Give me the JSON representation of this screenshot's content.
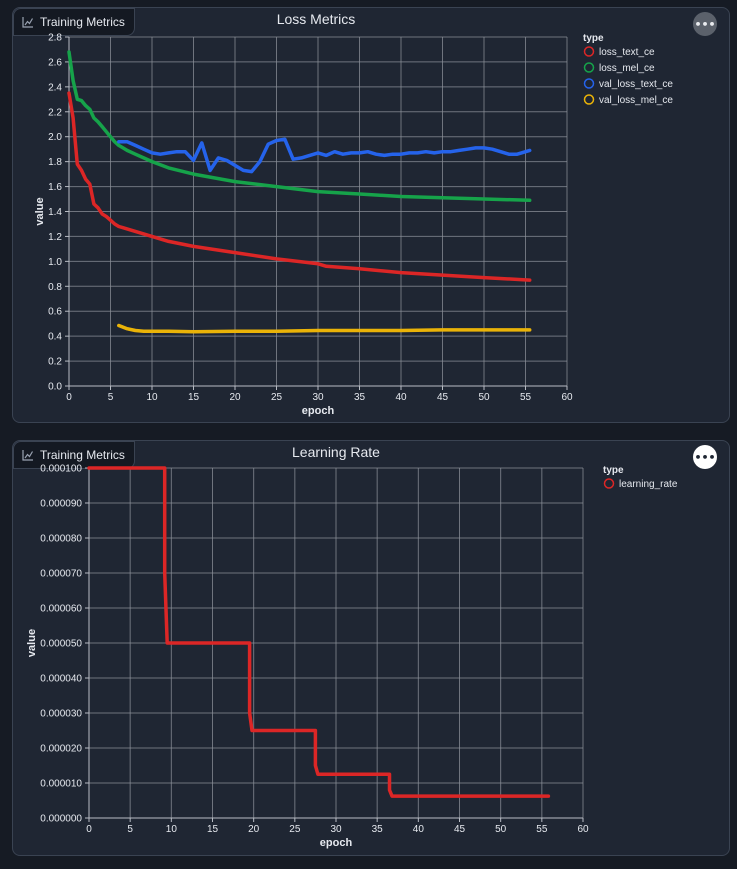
{
  "panels": [
    {
      "tag_label": "Training Metrics",
      "more_label": "•••"
    },
    {
      "tag_label": "Training Metrics",
      "more_label": "•••"
    }
  ],
  "chart_data": [
    {
      "type": "line",
      "title": "Loss Metrics",
      "xlabel": "epoch",
      "ylabel": "value",
      "xlim": [
        0,
        60
      ],
      "ylim": [
        0,
        2.8
      ],
      "xticks": [
        "0",
        "5",
        "10",
        "15",
        "20",
        "25",
        "30",
        "35",
        "40",
        "45",
        "50",
        "55",
        "60"
      ],
      "yticks": [
        "0.0",
        "0.2",
        "0.4",
        "0.6",
        "0.8",
        "1.0",
        "1.2",
        "1.4",
        "1.6",
        "1.8",
        "2.0",
        "2.2",
        "2.4",
        "2.6",
        "2.8"
      ],
      "grid": true,
      "legend": {
        "title": "type",
        "position": "top-right"
      },
      "series": [
        {
          "name": "loss_text_ce",
          "color": "#dc2626",
          "x": [
            0,
            0.5,
            1,
            1.5,
            2,
            2.5,
            3,
            3.5,
            4,
            4.5,
            5,
            5.5,
            6,
            6.5,
            7,
            8,
            9,
            10,
            12,
            15,
            20,
            25,
            30,
            31,
            35,
            40,
            45,
            50,
            55.5
          ],
          "y": [
            2.35,
            2.15,
            1.78,
            1.73,
            1.66,
            1.62,
            1.46,
            1.43,
            1.38,
            1.36,
            1.33,
            1.3,
            1.28,
            1.27,
            1.26,
            1.24,
            1.22,
            1.2,
            1.16,
            1.12,
            1.07,
            1.02,
            0.98,
            0.96,
            0.94,
            0.91,
            0.89,
            0.87,
            0.85
          ]
        },
        {
          "name": "loss_mel_ce",
          "color": "#16a34a",
          "x": [
            0,
            0.5,
            1,
            1.5,
            2,
            2.5,
            3,
            3.5,
            4,
            4.5,
            5,
            5.5,
            6,
            6.5,
            7,
            8,
            9,
            10,
            12,
            15,
            20,
            25,
            30,
            35,
            40,
            45,
            50,
            55.5
          ],
          "y": [
            2.68,
            2.45,
            2.3,
            2.29,
            2.25,
            2.22,
            2.15,
            2.12,
            2.08,
            2.04,
            2.0,
            1.96,
            1.93,
            1.91,
            1.89,
            1.86,
            1.83,
            1.8,
            1.75,
            1.7,
            1.64,
            1.6,
            1.56,
            1.54,
            1.52,
            1.51,
            1.5,
            1.49
          ]
        },
        {
          "name": "val_loss_text_ce",
          "color": "#2563eb",
          "x": [
            6,
            7,
            8,
            9,
            10,
            11,
            12,
            13,
            14,
            15,
            16,
            17,
            18,
            19,
            20,
            21,
            22,
            23,
            24,
            25,
            26,
            27,
            28,
            29,
            30,
            31,
            32,
            33,
            34,
            35,
            36,
            37,
            38,
            39,
            40,
            41,
            42,
            43,
            44,
            45,
            46,
            47,
            48,
            49,
            50,
            51,
            52,
            53,
            54,
            55.5
          ],
          "y": [
            1.96,
            1.96,
            1.93,
            1.9,
            1.87,
            1.86,
            1.87,
            1.88,
            1.88,
            1.81,
            1.95,
            1.73,
            1.83,
            1.81,
            1.77,
            1.73,
            1.72,
            1.8,
            1.94,
            1.97,
            1.98,
            1.82,
            1.83,
            1.85,
            1.87,
            1.85,
            1.88,
            1.86,
            1.87,
            1.87,
            1.88,
            1.86,
            1.85,
            1.86,
            1.86,
            1.87,
            1.87,
            1.88,
            1.87,
            1.88,
            1.88,
            1.89,
            1.9,
            1.91,
            1.91,
            1.9,
            1.88,
            1.86,
            1.86,
            1.89
          ]
        },
        {
          "name": "val_loss_mel_ce",
          "color": "#eab308",
          "x": [
            6,
            7,
            8,
            9,
            10,
            12,
            15,
            20,
            25,
            30,
            35,
            40,
            45,
            50,
            55.5
          ],
          "y": [
            0.485,
            0.46,
            0.445,
            0.44,
            0.44,
            0.44,
            0.435,
            0.44,
            0.44,
            0.445,
            0.445,
            0.445,
            0.45,
            0.45,
            0.45
          ]
        }
      ]
    },
    {
      "type": "line",
      "title": "Learning Rate",
      "xlabel": "epoch",
      "ylabel": "value",
      "xlim": [
        0,
        60
      ],
      "ylim": [
        0,
        0.0001
      ],
      "xticks": [
        "0",
        "5",
        "10",
        "15",
        "20",
        "25",
        "30",
        "35",
        "40",
        "45",
        "50",
        "55",
        "60"
      ],
      "yticks": [
        "0.000000",
        "0.000010",
        "0.000020",
        "0.000030",
        "0.000040",
        "0.000050",
        "0.000060",
        "0.000070",
        "0.000080",
        "0.000090",
        "0.000100"
      ],
      "grid": true,
      "legend": {
        "title": "type",
        "position": "top-right"
      },
      "series": [
        {
          "name": "learning_rate",
          "color": "#dc2626",
          "x": [
            0,
            9.2,
            9.2,
            9.5,
            19.5,
            19.5,
            19.8,
            27.5,
            27.5,
            27.8,
            36.5,
            36.5,
            36.8,
            55.8
          ],
          "y": [
            0.0001,
            0.0001,
            7e-05,
            5e-05,
            5e-05,
            3e-05,
            2.5e-05,
            2.5e-05,
            1.5e-05,
            1.25e-05,
            1.25e-05,
            8e-06,
            6.25e-06,
            6.25e-06
          ]
        }
      ]
    }
  ]
}
